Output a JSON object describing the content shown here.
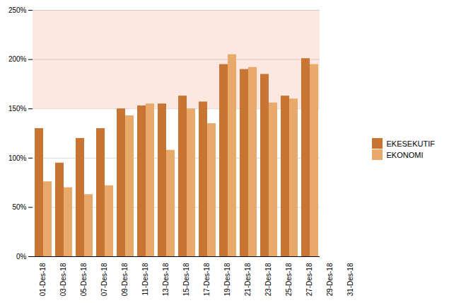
{
  "chart_data": {
    "type": "bar",
    "categories": [
      "01-Des-18",
      "03-Des-18",
      "05-Des-18",
      "07-Des-18",
      "09-Des-18",
      "11-Des-18",
      "13-Des-18",
      "15-Des-18",
      "17-Des-18",
      "19-Des-18",
      "21-Des-18",
      "23-Des-18",
      "25-Des-18",
      "27-Des-18",
      "29-Des-18",
      "31-Des-18"
    ],
    "series": [
      {
        "name": "EKESEKUTIF",
        "color": "#C87533",
        "values": [
          1.3,
          0.95,
          1.2,
          1.3,
          1.5,
          1.53,
          1.55,
          1.63,
          1.57,
          1.95,
          1.9,
          1.85,
          1.63,
          2.01,
          null,
          null
        ]
      },
      {
        "name": "EKONOMI",
        "color": "#E8A96A",
        "values": [
          0.76,
          0.7,
          0.63,
          0.72,
          1.43,
          1.55,
          1.08,
          1.5,
          1.35,
          2.05,
          1.92,
          1.56,
          1.6,
          1.95,
          null,
          null
        ]
      }
    ],
    "ylim": [
      0.0,
      2.5
    ],
    "yticks": [
      {
        "value": 0.0,
        "label": "0%"
      },
      {
        "value": 0.5,
        "label": "50%"
      },
      {
        "value": 1.0,
        "label": "100%"
      },
      {
        "value": 1.5,
        "label": "150%"
      },
      {
        "value": 2.0,
        "label": "200%"
      },
      {
        "value": 2.5,
        "label": "250%"
      }
    ],
    "grid": true,
    "legend": "right",
    "bands": [
      {
        "from": 1.5,
        "to": 2.5,
        "color": "#FCE8E0"
      }
    ]
  }
}
